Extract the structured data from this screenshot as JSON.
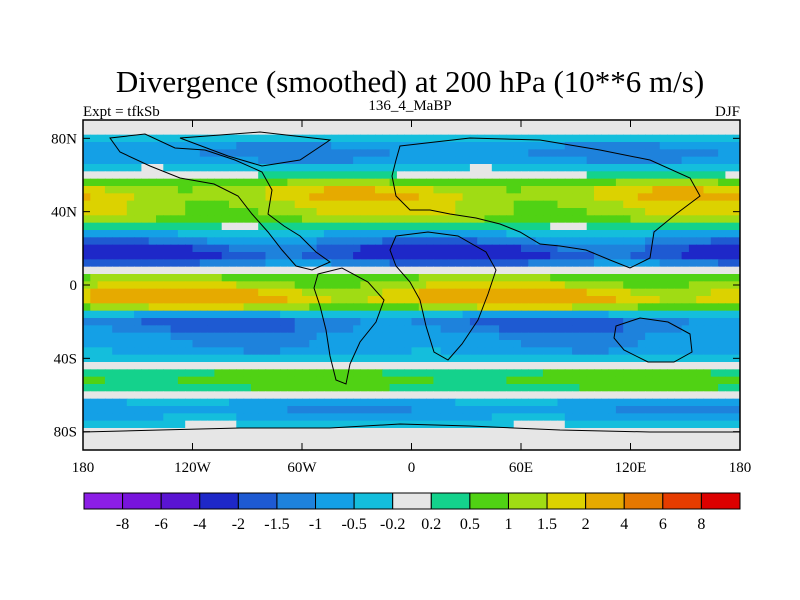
{
  "chart_data": {
    "type": "heatmap",
    "title": "Divergence (smoothed) at 200 hPa (10**6 m/s)",
    "subtitle_left": "Expt = tfkSb",
    "subtitle_center": "136_4_MaBP",
    "subtitle_right": "DJF",
    "xlim": [
      -180,
      180
    ],
    "ylim": [
      -90,
      90
    ],
    "x_ticks": [
      {
        "value": -180,
        "label": "180"
      },
      {
        "value": -120,
        "label": "120W"
      },
      {
        "value": -60,
        "label": "60W"
      },
      {
        "value": 0,
        "label": "0"
      },
      {
        "value": 60,
        "label": "60E"
      },
      {
        "value": 120,
        "label": "120E"
      },
      {
        "value": 180,
        "label": "180"
      }
    ],
    "y_ticks": [
      {
        "value": 80,
        "label": "80N"
      },
      {
        "value": 40,
        "label": "40N"
      },
      {
        "value": 0,
        "label": "0"
      },
      {
        "value": -40,
        "label": "40S"
      },
      {
        "value": -80,
        "label": "80S"
      }
    ],
    "colorbar": {
      "colors": [
        "#8c1ee6",
        "#7814dc",
        "#5a14d2",
        "#1e28c8",
        "#1e5ad2",
        "#1e82dc",
        "#14a0e6",
        "#14bedc",
        "#e6e6e6",
        "#14d28c",
        "#50d214",
        "#a0dc14",
        "#dcd200",
        "#e6aa00",
        "#e67800",
        "#e63c00",
        "#dc0000"
      ],
      "labels": [
        "-8",
        "-6",
        "-4",
        "-2",
        "-1.5",
        "-1",
        "-0.5",
        "-0.2",
        "0.2",
        "0.5",
        "1",
        "1.5",
        "2",
        "4",
        "6",
        "8"
      ]
    },
    "field_bands": [
      {
        "lat": 72,
        "amp": -1.1
      },
      {
        "lat": 50,
        "amp": 1.6
      },
      {
        "lat": 38,
        "amp": 1.2
      },
      {
        "lat": 26,
        "amp": -0.6
      },
      {
        "lat": 16,
        "amp": -2.2
      },
      {
        "lat": 4,
        "amp": 0.9
      },
      {
        "lat": -8,
        "amp": 2.3
      },
      {
        "lat": -20,
        "amp": -1.6
      },
      {
        "lat": -34,
        "amp": -0.8
      },
      {
        "lat": -52,
        "amp": 0.7
      },
      {
        "lat": -68,
        "amp": -0.9
      }
    ]
  }
}
